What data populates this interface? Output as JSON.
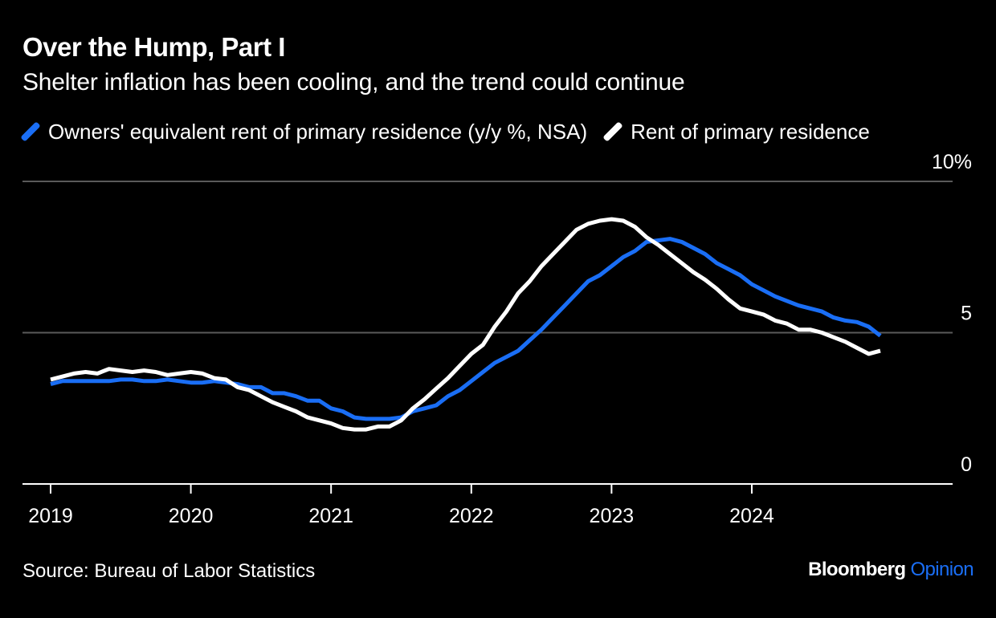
{
  "title": "Over the Hump, Part I",
  "subtitle": "Shelter inflation has been cooling, and the trend could continue",
  "source": "Source: Bureau of Labor Statistics",
  "brand": {
    "name": "Bloomberg",
    "section": "Opinion"
  },
  "colors": {
    "oer": "#1a6ef5",
    "rent": "#ffffff",
    "grid": "#5a5a5a",
    "background": "#000000"
  },
  "chart_data": {
    "type": "line",
    "title": "Over the Hump, Part I",
    "subtitle": "Shelter inflation has been cooling, and the trend could continue",
    "x_start": "2019-01",
    "x_end": "2024-12",
    "x_ticks": [
      "2019",
      "2020",
      "2021",
      "2022",
      "2023",
      "2024"
    ],
    "y_ticks": [
      {
        "value": 0,
        "label": "0"
      },
      {
        "value": 5,
        "label": "5"
      },
      {
        "value": 10,
        "label": "10%"
      }
    ],
    "ylim": [
      0,
      10
    ],
    "grid": true,
    "legend_position": "top-left",
    "series": [
      {
        "name": "Owners' equivalent rent of primary residence (y/y %, NSA)",
        "color": "#1a6ef5",
        "values": [
          3.3,
          3.4,
          3.4,
          3.4,
          3.4,
          3.4,
          3.45,
          3.45,
          3.4,
          3.4,
          3.45,
          3.4,
          3.35,
          3.35,
          3.4,
          3.35,
          3.3,
          3.2,
          3.2,
          3.0,
          3.0,
          2.9,
          2.75,
          2.75,
          2.5,
          2.4,
          2.2,
          2.15,
          2.15,
          2.15,
          2.2,
          2.4,
          2.5,
          2.6,
          2.9,
          3.1,
          3.4,
          3.7,
          4.0,
          4.2,
          4.4,
          4.75,
          5.1,
          5.5,
          5.9,
          6.3,
          6.7,
          6.9,
          7.2,
          7.5,
          7.7,
          8.0,
          8.05,
          8.1,
          8.0,
          7.8,
          7.6,
          7.3,
          7.1,
          6.9,
          6.6,
          6.4,
          6.2,
          6.05,
          5.9,
          5.8,
          5.7,
          5.5,
          5.4,
          5.35,
          5.2,
          4.9
        ]
      },
      {
        "name": "Rent of primary residence",
        "color": "#ffffff",
        "values": [
          3.45,
          3.55,
          3.65,
          3.7,
          3.65,
          3.8,
          3.75,
          3.7,
          3.75,
          3.7,
          3.6,
          3.65,
          3.7,
          3.65,
          3.5,
          3.45,
          3.2,
          3.1,
          2.9,
          2.7,
          2.55,
          2.4,
          2.2,
          2.1,
          2.0,
          1.85,
          1.8,
          1.8,
          1.9,
          1.9,
          2.1,
          2.5,
          2.8,
          3.15,
          3.5,
          3.9,
          4.3,
          4.6,
          5.2,
          5.7,
          6.3,
          6.7,
          7.2,
          7.6,
          8.0,
          8.4,
          8.6,
          8.7,
          8.75,
          8.7,
          8.5,
          8.15,
          7.9,
          7.6,
          7.3,
          7.0,
          6.75,
          6.45,
          6.1,
          5.8,
          5.7,
          5.6,
          5.4,
          5.3,
          5.1,
          5.1,
          5.0,
          4.85,
          4.7,
          4.5,
          4.3,
          4.4
        ]
      }
    ]
  }
}
